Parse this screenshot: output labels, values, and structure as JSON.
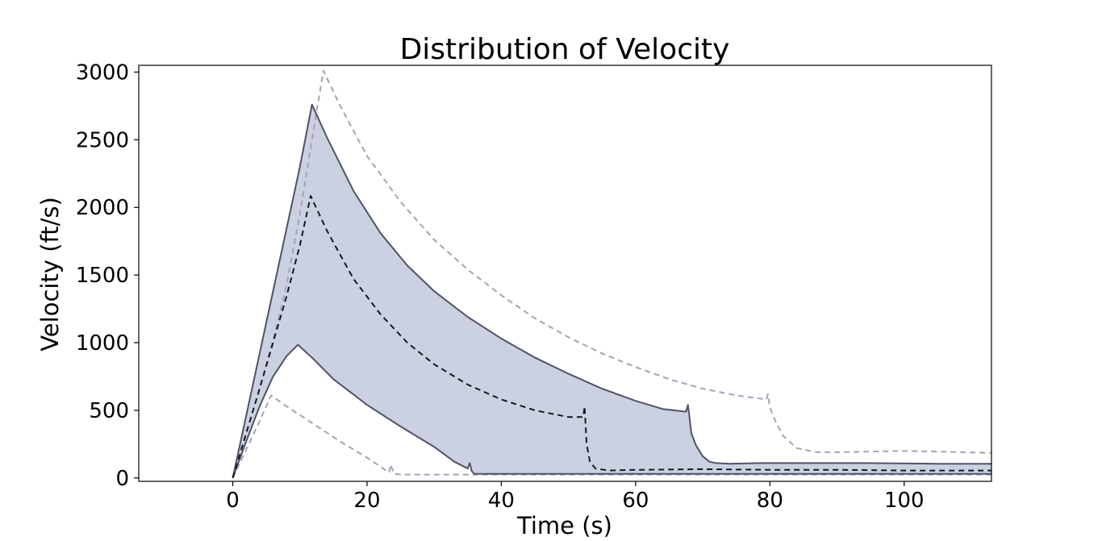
{
  "chart_data": {
    "type": "area",
    "title": "Distribution of Velocity",
    "xlabel": "Time (s)",
    "ylabel": "Velocity (ft/s)",
    "xlim": [
      -14,
      113
    ],
    "ylim": [
      -25,
      3050
    ],
    "xticks": [
      0,
      20,
      40,
      60,
      80,
      100
    ],
    "yticks": [
      0,
      500,
      1000,
      1500,
      2000,
      2500,
      3000
    ],
    "grid": false,
    "colors": {
      "band_fill": "#cbd1e0",
      "band_edge": "#4f5367",
      "median": "#141824",
      "extreme": "#a3a3b8"
    },
    "series": [
      {
        "role": "band_upper",
        "x": [
          0,
          2,
          4,
          6,
          8,
          10,
          11.8,
          14,
          18,
          22,
          26,
          30,
          35,
          40,
          45,
          50,
          55,
          60,
          64,
          67.5,
          67.8,
          68.3,
          69,
          70,
          71,
          72,
          74,
          78,
          85,
          95,
          105,
          113
        ],
        "y": [
          0,
          460,
          920,
          1380,
          1840,
          2300,
          2760,
          2520,
          2120,
          1810,
          1570,
          1380,
          1190,
          1030,
          890,
          770,
          660,
          570,
          510,
          490,
          540,
          330,
          240,
          160,
          120,
          110,
          105,
          110,
          110,
          110,
          105,
          105
        ]
      },
      {
        "role": "band_lower",
        "x": [
          0,
          2,
          4,
          6,
          8,
          9.7,
          12,
          15,
          20,
          25,
          30,
          33,
          35,
          35.3,
          35.6,
          36,
          40,
          60,
          80,
          100,
          113
        ],
        "y": [
          0,
          270,
          530,
          750,
          900,
          985,
          880,
          730,
          540,
          380,
          230,
          120,
          70,
          110,
          50,
          30,
          30,
          30,
          30,
          30,
          30
        ]
      },
      {
        "role": "median",
        "x": [
          0,
          2,
          4,
          6,
          8,
          10,
          11.6,
          14,
          18,
          22,
          26,
          30,
          35,
          40,
          45,
          50,
          52.2,
          52.4,
          52.7,
          53.2,
          54,
          56,
          60,
          70,
          80,
          90,
          100,
          113
        ],
        "y": [
          0,
          330,
          660,
          1000,
          1340,
          1720,
          2085,
          1830,
          1470,
          1210,
          1000,
          840,
          690,
          580,
          500,
          450,
          450,
          530,
          250,
          120,
          70,
          55,
          60,
          65,
          60,
          60,
          55,
          55
        ]
      },
      {
        "role": "max",
        "x": [
          0,
          2,
          4,
          6,
          8,
          10,
          12,
          13.5,
          16,
          20,
          25,
          30,
          35,
          40,
          45,
          50,
          55,
          60,
          65,
          70,
          75,
          79.5,
          79.7,
          80,
          81,
          82,
          84,
          87,
          90,
          95,
          100,
          105,
          113
        ],
        "y": [
          0,
          330,
          660,
          1020,
          1420,
          1950,
          2560,
          3010,
          2750,
          2380,
          2040,
          1760,
          1540,
          1350,
          1180,
          1040,
          920,
          820,
          730,
          660,
          610,
          580,
          620,
          520,
          400,
          310,
          220,
          190,
          190,
          195,
          200,
          195,
          185
        ]
      },
      {
        "role": "min",
        "x": [
          0,
          2,
          4,
          5.7,
          8,
          12,
          16,
          20,
          23.3,
          23.5,
          24,
          25,
          30,
          50,
          80,
          113
        ],
        "y": [
          0,
          210,
          420,
          610,
          530,
          400,
          270,
          150,
          40,
          100,
          30,
          25,
          25,
          25,
          25,
          25
        ]
      }
    ]
  }
}
